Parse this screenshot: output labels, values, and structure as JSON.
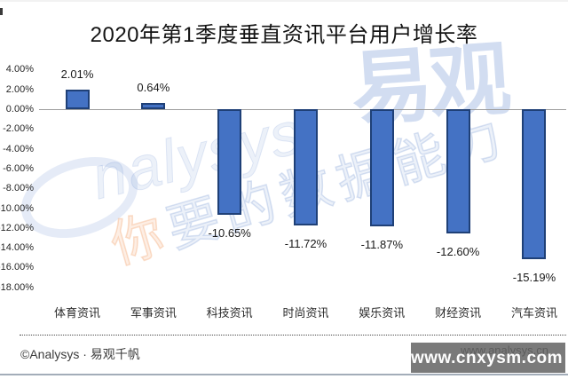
{
  "page": {
    "title": "2020年第1季度垂直资讯平台用户增长率"
  },
  "chart_data": {
    "type": "bar",
    "title": "2020年第1季度垂直资讯平台用户增长率",
    "categories": [
      "体育资讯",
      "军事资讯",
      "科技资讯",
      "时尚资讯",
      "娱乐资讯",
      "财经资讯",
      "汽车资讯"
    ],
    "values": [
      2.01,
      0.64,
      -10.65,
      -11.72,
      -11.87,
      -12.6,
      -15.19
    ],
    "value_labels": [
      "2.01%",
      "0.64%",
      "-10.65%",
      "-11.72%",
      "-11.87%",
      "-12.60%",
      "-15.19%"
    ],
    "xlabel": "",
    "ylabel": "",
    "ylim": [
      -18,
      4
    ],
    "ytick_step": 2,
    "ytick_labels": [
      "4.00%",
      "2.00%",
      "0.00%",
      "-2.00%",
      "-4.00%",
      "-6.00%",
      "-8.00%",
      "-10.00%",
      "-12.00%",
      "-14.00%",
      "-16.00%",
      "-18.00%"
    ],
    "grid": false,
    "legend": null,
    "bar_color": "#4472c4",
    "bar_border_color": "#1f4077",
    "zero_line_color": "#9e9e9e"
  },
  "footer": {
    "copyright": "©Analysys ·  易观千帆",
    "site_url": "www.analysys.cn",
    "overlay_url": "www.cnxysm.com"
  },
  "watermarks": {
    "logo_script": "nalysys",
    "brand_cn": "易观",
    "slogan_first": "你",
    "slogan_rest": "要的数据能力"
  }
}
